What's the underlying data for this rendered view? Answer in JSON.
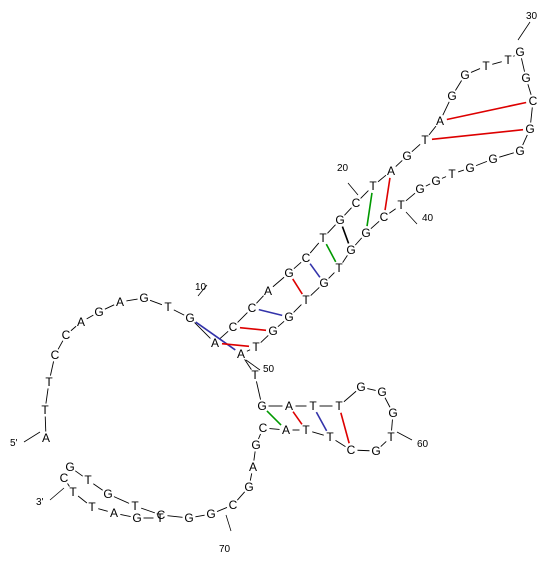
{
  "structure": {
    "five_prime_label": "5'",
    "three_prime_label": "3'",
    "sequence": "ATTCCAGAGTGACCAGCTGCTAGTAGGTTGGCGGGGTGGTCGGTGTGGTATGATTGGGTGCTTACGAGCGGCTGTGCTTAGT",
    "bases": [
      "A",
      "T",
      "T",
      "C",
      "C",
      "A",
      "G",
      "A",
      "G",
      "T",
      "G",
      "A",
      "C",
      "C",
      "A",
      "G",
      "C",
      "T",
      "G",
      "C",
      "T",
      "A",
      "G",
      "T",
      "A",
      "G",
      "G",
      "T",
      "T",
      "G",
      "G",
      "C",
      "G",
      "G",
      "G",
      "G",
      "T",
      "G",
      "G",
      "T",
      "C",
      "G",
      "G",
      "T",
      "G",
      "T",
      "G",
      "G",
      "T",
      "A",
      "T",
      "G",
      "A",
      "T",
      "T",
      "G",
      "G",
      "G",
      "T",
      "G",
      "C",
      "T",
      "T",
      "A",
      "C",
      "G",
      "A",
      "G",
      "C",
      "G",
      "G",
      "C",
      "T",
      "G",
      "T",
      "G",
      "C",
      "T",
      "T",
      "A",
      "G",
      "T"
    ],
    "index_labels": [
      {
        "text": "10",
        "base": 10
      },
      {
        "text": "20",
        "base": 20
      },
      {
        "text": "30",
        "base": 30
      },
      {
        "text": "40",
        "base": 40
      },
      {
        "text": "50",
        "base": 50
      },
      {
        "text": "60",
        "base": 60
      },
      {
        "text": "70",
        "base": 70
      }
    ],
    "pairs": [
      {
        "i": 11,
        "j": 50,
        "type": "A-T",
        "color": "#3333aa"
      },
      {
        "i": 12,
        "j": 49,
        "type": "C-G",
        "color": "#dd0000"
      },
      {
        "i": 13,
        "j": 48,
        "type": "C-G",
        "color": "#dd0000"
      },
      {
        "i": 14,
        "j": 47,
        "type": "A-T",
        "color": "#3333aa"
      },
      {
        "i": 16,
        "j": 46,
        "type": "C-G",
        "color": "#dd0000"
      },
      {
        "i": 17,
        "j": 45,
        "type": "A-T",
        "color": "#3333aa"
      },
      {
        "i": 18,
        "j": 44,
        "type": "T-G",
        "color": "#009900"
      },
      {
        "i": 19,
        "j": 43,
        "type": "G-G",
        "color": "#000000"
      },
      {
        "i": 21,
        "j": 42,
        "type": "T-G",
        "color": "#009900"
      },
      {
        "i": 22,
        "j": 41,
        "type": "C-G",
        "color": "#dd0000"
      },
      {
        "i": 24,
        "j": 33,
        "type": "G-C",
        "color": "#dd0000"
      },
      {
        "i": 25,
        "j": 32,
        "type": "G-C",
        "color": "#dd0000"
      },
      {
        "i": 52,
        "j": 64,
        "type": "T-G",
        "color": "#009900"
      },
      {
        "i": 53,
        "j": 63,
        "type": "G-C",
        "color": "#dd0000"
      },
      {
        "i": 54,
        "j": 62,
        "type": "T-A",
        "color": "#3333aa"
      },
      {
        "i": 55,
        "j": 61,
        "type": "G-C",
        "color": "#dd0000"
      }
    ]
  }
}
